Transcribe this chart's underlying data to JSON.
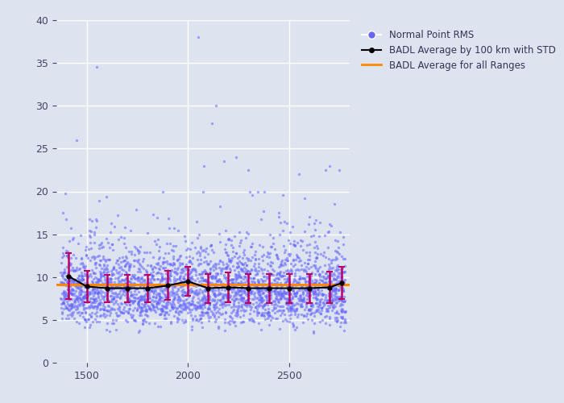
{
  "scatter_color": "#6666ff",
  "scatter_alpha": 0.55,
  "scatter_size": 6,
  "bg_color": "#dde4f0",
  "fig_bg_color": "#dde4f0",
  "grid_color": "white",
  "xlim": [
    1350,
    2800
  ],
  "ylim": [
    0,
    40
  ],
  "xticks": [
    1500,
    2000,
    2500
  ],
  "yticks": [
    0,
    5,
    10,
    15,
    20,
    25,
    30,
    35,
    40
  ],
  "bin_centers": [
    1410,
    1500,
    1600,
    1700,
    1800,
    1900,
    2000,
    2100,
    2200,
    2300,
    2400,
    2500,
    2600,
    2700,
    2760
  ],
  "bin_means": [
    10.1,
    8.9,
    8.7,
    8.7,
    8.7,
    9.0,
    9.5,
    8.7,
    8.8,
    8.7,
    8.7,
    8.7,
    8.7,
    8.8,
    9.3
  ],
  "bin_stds": [
    2.7,
    1.8,
    1.6,
    1.6,
    1.6,
    1.7,
    1.7,
    1.7,
    1.7,
    1.7,
    1.7,
    1.7,
    1.7,
    1.8,
    1.9
  ],
  "overall_mean": 9.1,
  "avg_line_color": "#ff8800",
  "bin_line_color": "black",
  "errorbar_color": "#bb0066",
  "legend_labels": [
    "Normal Point RMS",
    "BADL Average by 100 km with STD",
    "BADL Average for all Ranges"
  ],
  "legend_colors": [
    "#6666ff",
    "black",
    "#ff8800"
  ],
  "seed": 42,
  "n_core": 3000,
  "n_outliers": 15
}
